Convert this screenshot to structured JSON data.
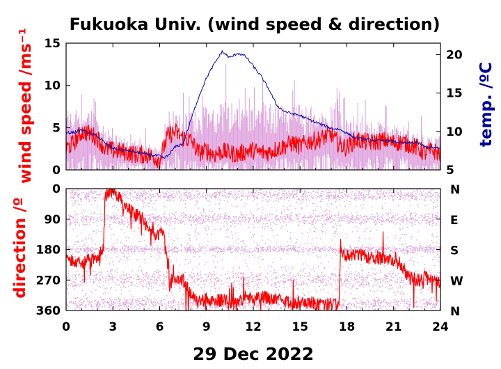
{
  "chart_data": {
    "title": "Fukuoka Univ. (wind speed & direction)",
    "date_label": "29 Dec 2022",
    "x_axis": {
      "range": [
        0,
        24
      ],
      "ticks": [
        0,
        3,
        6,
        9,
        12,
        15,
        18,
        21,
        24
      ],
      "tick_labels": [
        "0",
        "3",
        "6",
        "9",
        "12",
        "15",
        "18",
        "21",
        "24"
      ]
    },
    "colors": {
      "wind_speed": "#ff0000",
      "gust": "#dda0dd",
      "temperature": "#0000aa",
      "direction": "#ff0000",
      "direction_scatter": "#dda0dd"
    },
    "panels": [
      {
        "type": "line",
        "ylabel": "wind speed /ms⁻¹",
        "ylim": [
          0,
          15
        ],
        "y_ticks": [
          0,
          5,
          10,
          15
        ],
        "y_tick_labels": [
          "0",
          "5",
          "10",
          "15"
        ],
        "y2label": "temp. /ºC",
        "y2lim": [
          5,
          21.5
        ],
        "y2_ticks": [
          5,
          10,
          15,
          20
        ],
        "y2_tick_labels": [
          "5",
          "10",
          "15",
          "20"
        ],
        "series": [
          {
            "key": "gust_max",
            "type": "area",
            "x": [
              0,
              0.5,
              1,
              1.5,
              2,
              2.5,
              3,
              3.5,
              4,
              4.5,
              5,
              5.5,
              6,
              6.5,
              7,
              7.5,
              8,
              8.5,
              9,
              9.5,
              10,
              10.5,
              11,
              11.5,
              12,
              12.5,
              13,
              13.5,
              14,
              14.5,
              15,
              15.5,
              16,
              16.5,
              17,
              17.5,
              18,
              18.5,
              19,
              19.5,
              20,
              20.5,
              21,
              21.5,
              22,
              22.5,
              23,
              23.5,
              24
            ],
            "values": [
              7,
              7.1,
              7.2,
              7.0,
              6.5,
              4.8,
              4.2,
              3.8,
              3.5,
              3.3,
              3.2,
              3.0,
              2.8,
              6.8,
              7.0,
              6.5,
              7.0,
              6.8,
              7.2,
              7.5,
              7.8,
              8.0,
              8.5,
              7.6,
              7.8,
              8.0,
              7.8,
              7.5,
              7.6,
              7.8,
              7.5,
              7.4,
              7.5,
              7.4,
              7.2,
              6.8,
              5.8,
              5.6,
              5.5,
              5.4,
              5.5,
              5.2,
              5.0,
              5.0,
              4.8,
              4.2,
              4.0,
              3.8,
              3.8
            ]
          },
          {
            "key": "wind_speed",
            "type": "line",
            "x": [
              0,
              0.5,
              1,
              1.5,
              2,
              2.5,
              3,
              3.5,
              4,
              4.5,
              5,
              5.5,
              6,
              6.5,
              7,
              7.5,
              8,
              8.5,
              9,
              9.5,
              10,
              10.5,
              11,
              11.5,
              12,
              12.5,
              13,
              13.5,
              14,
              14.5,
              15,
              15.5,
              16,
              16.5,
              17,
              17.5,
              18,
              18.5,
              19,
              19.5,
              20,
              20.5,
              21,
              21.5,
              22,
              22.5,
              23,
              23.5,
              24
            ],
            "values": [
              2.5,
              3.2,
              4.5,
              4.3,
              3.8,
              2.5,
              2.3,
              2.2,
              2.0,
              1.8,
              1.8,
              1.6,
              1.2,
              4.0,
              4.5,
              3.8,
              3.5,
              2.0,
              2.3,
              1.8,
              2.2,
              2.0,
              1.8,
              2.2,
              2.3,
              2.0,
              2.1,
              2.5,
              2.8,
              3.2,
              2.8,
              3.3,
              3.5,
              3.8,
              4.2,
              3.0,
              2.6,
              3.5,
              3.4,
              3.2,
              3.4,
              3.5,
              3.2,
              3.3,
              3.0,
              2.6,
              2.0,
              2.3,
              1.9
            ]
          },
          {
            "key": "temperature",
            "type": "line",
            "axis": "y2",
            "x": [
              0,
              0.5,
              1,
              1.5,
              2,
              2.5,
              3,
              3.5,
              4,
              4.5,
              5,
              5.5,
              6,
              6.25,
              6.5,
              7,
              7.5,
              8,
              8.5,
              9,
              9.5,
              10,
              10.5,
              11,
              11.5,
              12,
              12.5,
              13,
              13.5,
              14,
              14.5,
              15,
              15.5,
              16,
              16.5,
              17,
              17.5,
              18,
              18.5,
              19,
              19.5,
              20,
              20.5,
              21,
              21.5,
              22,
              22.5,
              23,
              23.5,
              24
            ],
            "values": [
              9.8,
              9.9,
              10.2,
              9.8,
              9.4,
              8.5,
              7.8,
              7.6,
              7.5,
              7.3,
              7.1,
              6.9,
              6.8,
              6.5,
              6.8,
              8.0,
              8.4,
              11.5,
              14.5,
              17.0,
              18.8,
              20.4,
              19.6,
              20.2,
              19.8,
              18.5,
              17.2,
              15.5,
              13.4,
              12.6,
              12.3,
              12.1,
              11.6,
              11.2,
              10.8,
              10.4,
              10.3,
              9.8,
              9.2,
              9.0,
              8.9,
              8.8,
              8.8,
              8.7,
              8.5,
              8.5,
              8.6,
              8.0,
              7.9,
              7.8
            ]
          }
        ]
      },
      {
        "type": "scatter",
        "ylabel": "direction /º",
        "ylim": [
          0,
          360
        ],
        "y_inverted": true,
        "y_ticks": [
          0,
          90,
          180,
          270,
          360
        ],
        "y_tick_labels": [
          "0",
          "90",
          "180",
          "270",
          "360"
        ],
        "y2_tick_labels": [
          "N",
          "E",
          "S",
          "W",
          "N"
        ],
        "series": [
          {
            "key": "direction",
            "type": "line",
            "x": [
              0,
              0.5,
              1,
              1.5,
              2,
              2.4,
              2.5,
              2.8,
              3.2,
              3.6,
              4,
              4.4,
              4.8,
              5.2,
              5.6,
              6,
              6.3,
              6.6,
              7,
              7.5,
              8,
              8.5,
              9,
              9.5,
              10,
              10.5,
              11,
              11.5,
              12,
              12.5,
              13,
              13.5,
              14,
              14.5,
              15,
              15.5,
              16,
              16.5,
              17,
              17.5,
              17.6,
              18,
              18.5,
              19,
              19.5,
              20,
              20.5,
              21,
              21.5,
              22,
              22.5,
              23,
              23.5,
              24
            ],
            "values": [
              205,
              215,
              225,
              210,
              215,
              170,
              20,
              5,
              15,
              40,
              60,
              75,
              85,
              110,
              130,
              140,
              120,
              285,
              275,
              270,
              310,
              335,
              325,
              330,
              330,
              335,
              330,
              320,
              330,
              320,
              325,
              330,
              330,
              340,
              335,
              335,
              340,
              345,
              340,
              345,
              195,
              200,
              200,
              195,
              205,
              205,
              210,
              210,
              225,
              265,
              270,
              265,
              270,
              275
            ]
          },
          {
            "key": "direction_scatter",
            "type": "scatter",
            "bands": [
              {
                "x_range": [
                  0,
                  24
                ],
                "y_center": 180,
                "y_spread": 12
              },
              {
                "x_range": [
                  0,
                  24
                ],
                "y_center": 90,
                "y_spread": 20
              },
              {
                "x_range": [
                  0,
                  24
                ],
                "y_center": 270,
                "y_spread": 30
              },
              {
                "x_range": [
                  0,
                  24
                ],
                "y_center": 20,
                "y_spread": 20
              },
              {
                "x_range": [
                  0,
                  24
                ],
                "y_center": 340,
                "y_spread": 20
              }
            ]
          }
        ]
      }
    ]
  }
}
